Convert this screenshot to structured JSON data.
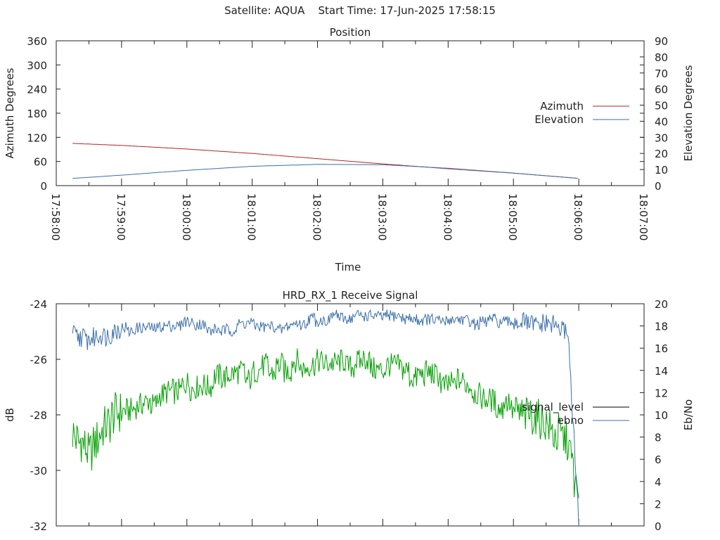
{
  "header": {
    "title": "Satellite: AQUA    Start Time: 17-Jun-2025 17:58:15"
  },
  "chart_data": [
    {
      "type": "line",
      "title": "Position",
      "xlabel": "Time",
      "ylabel_left": "Azimuth Degrees",
      "ylabel_right": "Elevation Degrees",
      "x_tick_labels": [
        "17:58:00",
        "17:59:00",
        "18:00:00",
        "18:01:00",
        "18:02:00",
        "18:03:00",
        "18:04:00",
        "18:05:00",
        "18:06:00",
        "18:07:00"
      ],
      "xlim_seconds_after_17_58_00": [
        0,
        540
      ],
      "ylim_left": [
        0,
        360
      ],
      "ylim_right": [
        0,
        90
      ],
      "y_ticks_left": [
        "360",
        "300",
        "240",
        "180",
        "120",
        "60",
        "0"
      ],
      "y_ticks_right": [
        "90",
        "80",
        "70",
        "60",
        "50",
        "40",
        "30",
        "20",
        "10",
        "0"
      ],
      "legend_position": "right",
      "series": [
        {
          "name": "Azimuth",
          "axis": "left",
          "color": "#b22222",
          "x_time": [
            "17:58:15",
            "17:59:00",
            "18:00:00",
            "18:01:00",
            "18:02:00",
            "18:03:00",
            "18:04:00",
            "18:05:00",
            "18:06:00"
          ],
          "values": [
            105,
            100,
            91,
            80,
            67,
            54,
            42,
            31,
            18
          ]
        },
        {
          "name": "Elevation",
          "axis": "right",
          "color": "#3b6fa8",
          "x_time": [
            "17:58:15",
            "17:59:00",
            "18:00:00",
            "18:01:00",
            "18:02:00",
            "18:03:00",
            "18:04:00",
            "18:05:00",
            "18:06:00"
          ],
          "values": [
            4.5,
            6.5,
            9.5,
            12.0,
            13.2,
            13.0,
            10.8,
            7.8,
            4.5
          ]
        }
      ]
    },
    {
      "type": "line",
      "title": "HRD_RX_1 Receive Signal",
      "ylabel_left": "dB",
      "ylabel_right": "Eb/No",
      "ylim_left": [
        -32,
        -24
      ],
      "ylim_right": [
        0,
        20
      ],
      "y_ticks_left": [
        "-24",
        "-26",
        "-28",
        "-30",
        "-32"
      ],
      "y_ticks_right": [
        "20",
        "18",
        "16",
        "14",
        "12",
        "10",
        "8",
        "6",
        "4",
        "2",
        "0"
      ],
      "legend_position": "right",
      "series": [
        {
          "name": "signal_level",
          "legend_color": "#000000",
          "plot_color": "#00a000",
          "axis": "left",
          "x_time": [
            "17:58:15",
            "17:58:30",
            "17:58:45",
            "17:59:00",
            "17:59:30",
            "18:00:00",
            "18:00:30",
            "18:01:00",
            "18:01:30",
            "18:02:00",
            "18:02:30",
            "18:03:00",
            "18:03:30",
            "18:04:00",
            "18:04:30",
            "18:05:00",
            "18:05:30",
            "18:05:50",
            "18:06:00"
          ],
          "values": [
            -28.5,
            -29.5,
            -28.3,
            -28.0,
            -27.4,
            -27.0,
            -26.8,
            -26.5,
            -26.3,
            -26.1,
            -26.1,
            -26.3,
            -26.5,
            -26.8,
            -27.3,
            -27.8,
            -28.3,
            -29.2,
            -31.0
          ]
        },
        {
          "name": "ebno",
          "color": "#3b6fa8",
          "axis": "right",
          "x_time": [
            "17:58:15",
            "17:58:30",
            "17:58:45",
            "17:59:00",
            "17:59:30",
            "18:00:00",
            "18:00:30",
            "18:01:00",
            "18:01:30",
            "18:02:00",
            "18:02:30",
            "18:03:00",
            "18:03:30",
            "18:04:00",
            "18:04:30",
            "18:05:00",
            "18:05:30",
            "18:05:50",
            "18:06:00"
          ],
          "values": [
            17.5,
            16.5,
            17.2,
            17.6,
            18.0,
            18.2,
            17.5,
            18.3,
            17.8,
            18.6,
            18.9,
            18.8,
            18.7,
            18.5,
            18.4,
            18.2,
            18.0,
            17.6,
            0
          ]
        }
      ]
    }
  ]
}
